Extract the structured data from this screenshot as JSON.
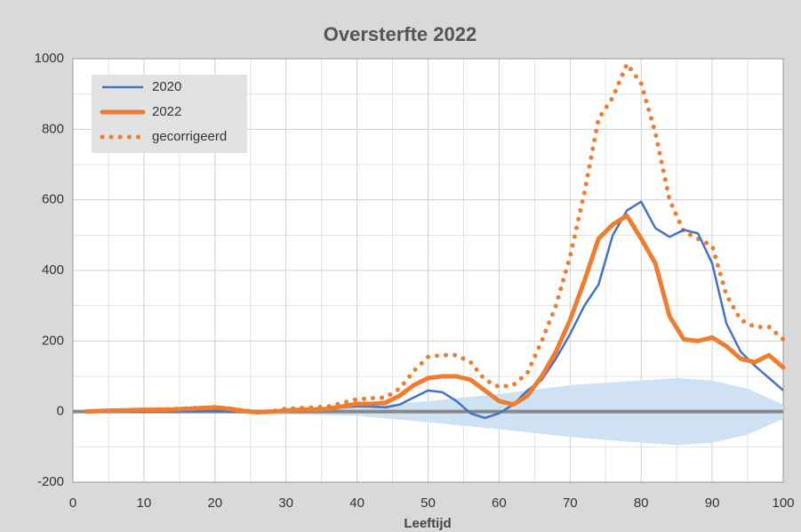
{
  "chart_data": {
    "type": "line",
    "title": "Oversterfte 2022",
    "x_label": "Leeftijd",
    "x": [
      2,
      4,
      6,
      8,
      10,
      12,
      14,
      16,
      18,
      20,
      22,
      24,
      26,
      28,
      30,
      32,
      34,
      36,
      38,
      40,
      42,
      44,
      46,
      48,
      50,
      52,
      54,
      56,
      58,
      60,
      62,
      64,
      66,
      68,
      70,
      72,
      74,
      76,
      78,
      80,
      82,
      84,
      86,
      88,
      90,
      92,
      94,
      96,
      98,
      100
    ],
    "series": [
      {
        "name": "2020",
        "color": "#4472c4",
        "style": "thin",
        "values": [
          0,
          0,
          0,
          0,
          0,
          1,
          1,
          2,
          2,
          2,
          1,
          0,
          -2,
          0,
          2,
          4,
          6,
          8,
          12,
          15,
          14,
          12,
          20,
          40,
          60,
          55,
          30,
          -5,
          -18,
          -5,
          20,
          60,
          90,
          150,
          220,
          300,
          360,
          500,
          570,
          595,
          520,
          495,
          515,
          505,
          420,
          250,
          170,
          130,
          95,
          60
        ]
      },
      {
        "name": "2022",
        "color": "#ed7d31",
        "style": "thick",
        "values": [
          0,
          2,
          3,
          4,
          5,
          5,
          6,
          8,
          10,
          12,
          8,
          2,
          -2,
          0,
          3,
          5,
          6,
          8,
          15,
          22,
          22,
          25,
          45,
          75,
          95,
          100,
          100,
          90,
          60,
          30,
          20,
          45,
          100,
          170,
          260,
          370,
          490,
          530,
          555,
          490,
          420,
          270,
          205,
          200,
          210,
          185,
          150,
          140,
          160,
          125
        ]
      },
      {
        "name": "gecorrigeerd",
        "color": "#ed7d31",
        "style": "dotted",
        "values": [
          0,
          2,
          3,
          4,
          5,
          6,
          7,
          9,
          11,
          12,
          9,
          3,
          -1,
          1,
          8,
          10,
          12,
          15,
          25,
          35,
          38,
          40,
          65,
          115,
          155,
          160,
          160,
          140,
          90,
          70,
          75,
          110,
          200,
          300,
          440,
          620,
          830,
          890,
          985,
          930,
          790,
          600,
          510,
          490,
          470,
          330,
          260,
          240,
          240,
          205
        ]
      }
    ],
    "band": {
      "color": "#cfe2f3",
      "x": [
        0,
        10,
        20,
        30,
        40,
        50,
        60,
        70,
        80,
        85,
        90,
        95,
        100
      ],
      "upper": [
        0,
        2,
        4,
        8,
        12,
        30,
        50,
        75,
        88,
        95,
        88,
        65,
        20
      ],
      "lower": [
        0,
        -2,
        -4,
        -8,
        -12,
        -30,
        -50,
        -72,
        -88,
        -95,
        -88,
        -65,
        -20
      ]
    },
    "xlim": [
      0,
      100
    ],
    "xticks": [
      0,
      10,
      20,
      30,
      40,
      50,
      60,
      70,
      80,
      90,
      100
    ],
    "x_minor_ticks": [
      5,
      15,
      25,
      35,
      45,
      55,
      65,
      75,
      85,
      95
    ],
    "ylim": [
      -200,
      1000
    ],
    "yticks": [
      -200,
      0,
      200,
      400,
      600,
      800,
      1000
    ],
    "y_minor_ticks": [
      -100,
      100,
      300,
      500,
      700,
      900
    ],
    "grid": true,
    "legend": "upper left"
  }
}
